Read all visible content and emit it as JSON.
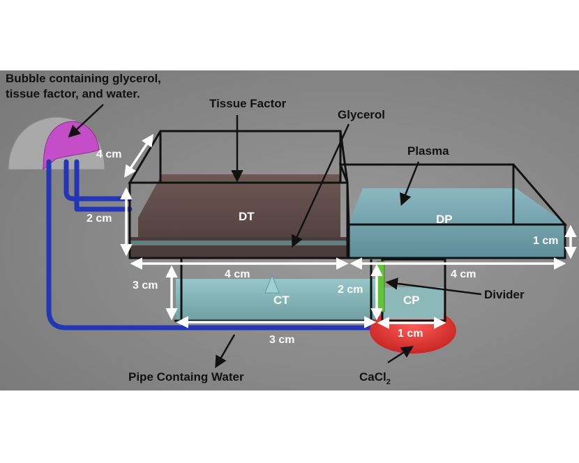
{
  "colors": {
    "background": "#8c8c8c",
    "page": "#ffffff",
    "pipe": "#2336b8",
    "bubble": "#c44dc8",
    "tissue_factor": "#6a5350",
    "plasma": "#7ea9b4",
    "water": "#86b4b8",
    "cacl2": "#e23a35",
    "divider": "#63c23a",
    "arrow_white": "#ffffff",
    "arrow_black": "#111111"
  },
  "labels": {
    "bubble_line1": "Bubble containing glycerol,",
    "bubble_line2": "tissue factor, and water.",
    "tissue_factor": "Tissue Factor",
    "glycerol": "Glycerol",
    "plasma": "Plasma",
    "divider": "Divider",
    "pipe": "Pipe Containg Water",
    "cacl2_main": "CaCl",
    "cacl2_sub": "2"
  },
  "chambers": {
    "dt": "DT",
    "dp": "DP",
    "ct": "CT",
    "cp": "CP"
  },
  "dimensions": {
    "dt_depth": "4 cm",
    "dt_height": "2 cm",
    "dt_width": "4 cm",
    "dp_height": "1 cm",
    "dp_width": "4 cm",
    "ct_height": "3 cm",
    "ct_width": "3 cm",
    "cp_height": "2 cm",
    "cp_width": "1 cm"
  },
  "icons": [
    "bubble-icon",
    "pipe-icon",
    "cacl2-blob-icon",
    "divider-plate-icon"
  ]
}
